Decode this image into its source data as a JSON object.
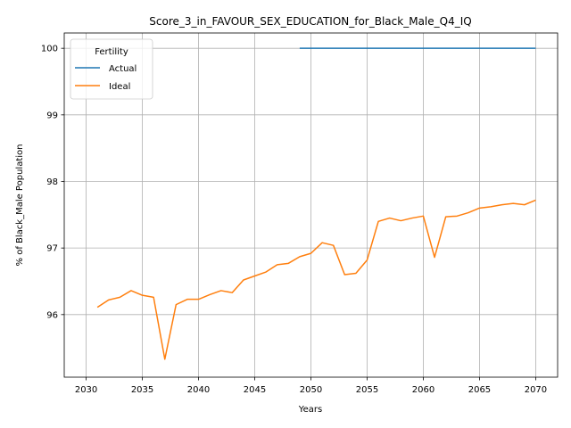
{
  "chart_data": {
    "type": "line",
    "title": "Score_3_in_FAVOUR_SEX_EDUCATION_for_Black_Male_Q4_IQ",
    "xlabel": "Years",
    "ylabel": "% of Black_Male Population",
    "xlim": [
      2028.05,
      2071.95
    ],
    "ylim": [
      95.06,
      100.23
    ],
    "xticks": [
      2030,
      2035,
      2040,
      2045,
      2050,
      2055,
      2060,
      2065,
      2070
    ],
    "yticks": [
      96,
      97,
      98,
      99,
      100
    ],
    "grid": true,
    "legend": {
      "title": "Fertility",
      "placement": "upper-left"
    },
    "series": [
      {
        "name": "Actual",
        "color": "#1f77b4",
        "x": [
          2049,
          2050,
          2051,
          2052,
          2053,
          2054,
          2055,
          2056,
          2057,
          2058,
          2059,
          2060,
          2061,
          2062,
          2063,
          2064,
          2065,
          2066,
          2067,
          2068,
          2069,
          2070
        ],
        "y": [
          100,
          100,
          100,
          100,
          100,
          100,
          100,
          100,
          100,
          100,
          100,
          100,
          100,
          100,
          100,
          100,
          100,
          100,
          100,
          100,
          100,
          100
        ]
      },
      {
        "name": "Ideal",
        "color": "#ff7f0e",
        "x": [
          2031,
          2032,
          2033,
          2034,
          2035,
          2036,
          2037,
          2038,
          2039,
          2040,
          2041,
          2042,
          2043,
          2044,
          2045,
          2046,
          2047,
          2048,
          2049,
          2050,
          2051,
          2052,
          2053,
          2054,
          2055,
          2056,
          2057,
          2058,
          2059,
          2060,
          2061,
          2062,
          2063,
          2064,
          2065,
          2066,
          2067,
          2068,
          2069,
          2070
        ],
        "y": [
          96.11,
          96.22,
          96.26,
          96.36,
          96.29,
          96.26,
          95.33,
          96.15,
          96.23,
          96.23,
          96.3,
          96.36,
          96.33,
          96.52,
          96.58,
          96.64,
          96.75,
          96.77,
          96.87,
          96.92,
          97.08,
          97.04,
          96.6,
          96.62,
          96.82,
          97.4,
          97.45,
          97.41,
          97.45,
          97.48,
          96.86,
          97.47,
          97.48,
          97.53,
          97.6,
          97.62,
          97.65,
          97.67,
          97.65,
          97.72
        ]
      }
    ]
  }
}
